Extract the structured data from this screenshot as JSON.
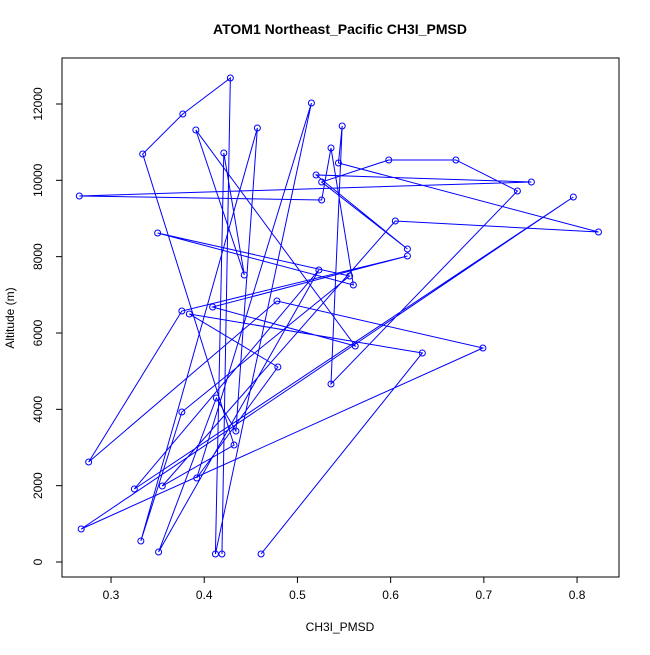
{
  "chart_data": {
    "type": "line",
    "title": "ATOM1 Northeast_Pacific CH3I_PMSD",
    "x_label": "CH3I_PMSD",
    "y_label": "Altitude (m)",
    "series": [
      {
        "color": "#0000ff",
        "marker": "circle",
        "x": [
          0.461,
          0.634,
          0.384,
          0.479,
          0.392,
          0.515,
          0.412,
          0.421,
          0.443,
          0.391,
          0.562,
          0.409,
          0.618,
          0.376,
          0.276,
          0.478,
          0.699,
          0.268,
          0.796,
          0.325,
          0.523,
          0.351,
          0.413,
          0.434,
          0.457,
          0.332,
          0.376,
          0.556,
          0.35,
          0.56,
          0.536,
          0.526,
          0.266,
          0.751,
          0.52,
          0.618,
          0.526,
          0.598,
          0.67,
          0.736,
          0.536,
          0.548,
          0.544,
          0.823,
          0.605,
          0.355,
          0.432,
          0.334,
          0.377,
          0.428,
          0.419
        ],
        "values": [
          210,
          5476,
          6498,
          5109,
          2201,
          12026,
          210,
          10716,
          7520,
          11319,
          5659,
          6681,
          8017,
          6576,
          2620,
          6838,
          5607,
          865,
          9563,
          1913,
          7651,
          262,
          4297,
          3432,
          11371,
          550,
          3930,
          7493,
          8620,
          7258,
          10847,
          9485,
          9590,
          9956,
          10140,
          8201,
          9956,
          10533,
          10533,
          9721,
          4664,
          11423,
          10454,
          8646,
          8934,
          1991,
          3065,
          10690,
          11738,
          12681,
          210
        ]
      }
    ],
    "xlim": [
      0.2474,
      0.845
    ],
    "ylim": [
      -393,
      13205
    ],
    "xticks": [
      0.3,
      0.4,
      0.5,
      0.6,
      0.7,
      0.8
    ],
    "yticks": [
      0,
      2000,
      4000,
      6000,
      8000,
      10000,
      12000
    ]
  }
}
